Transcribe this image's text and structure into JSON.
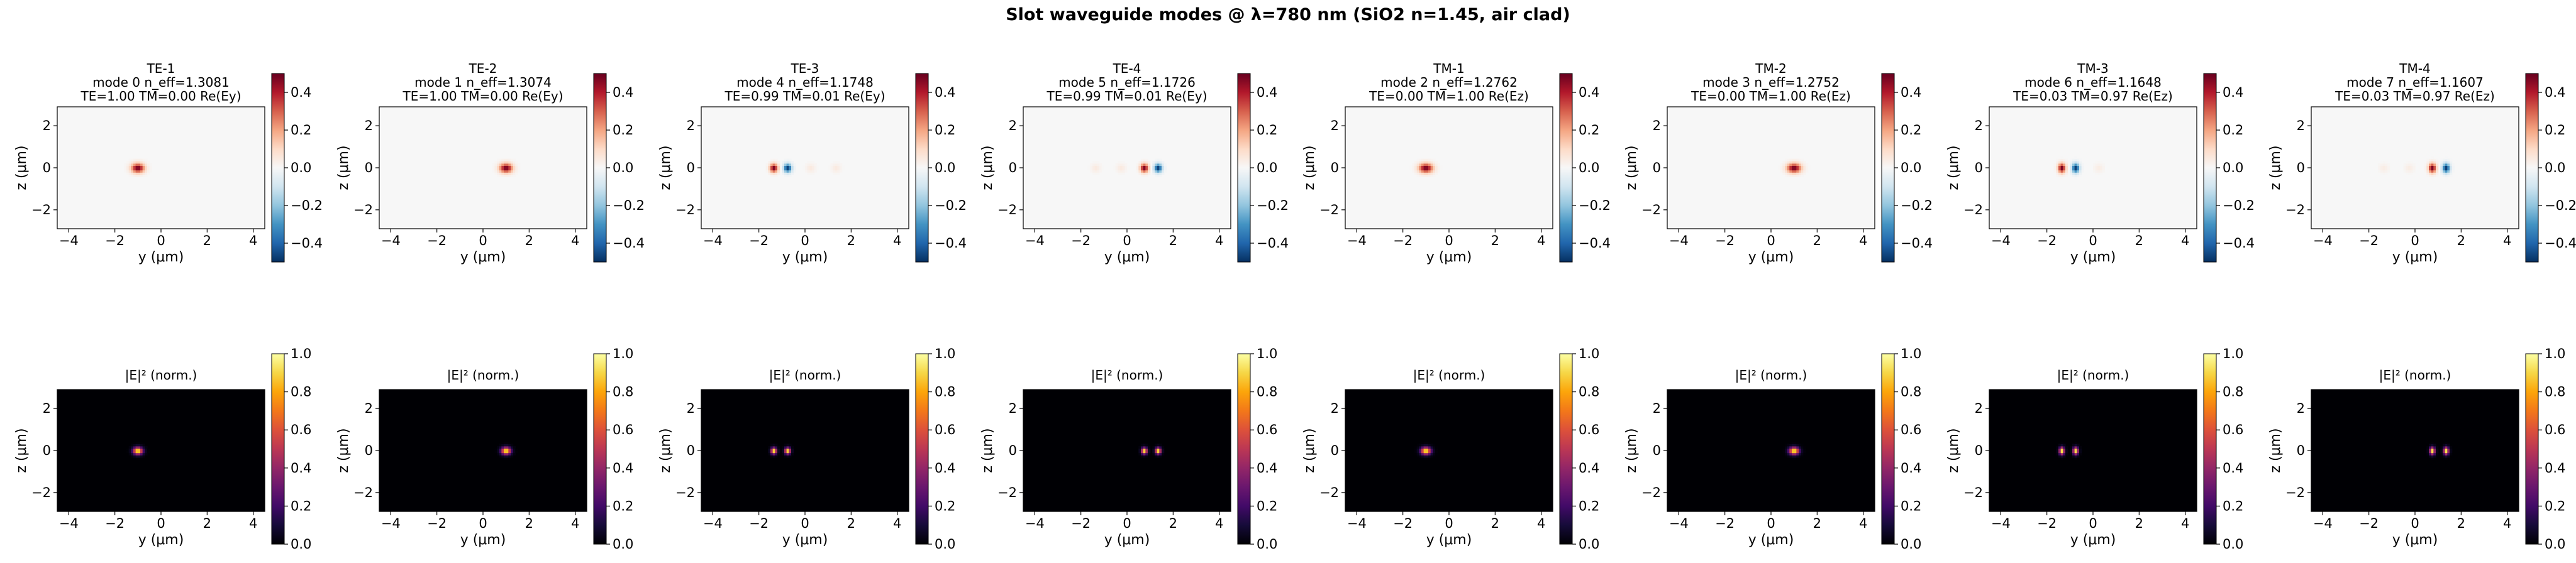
{
  "figure": {
    "suptitle": "Slot waveguide modes @ λ=780 nm (SiO2 n=1.45, air clad)"
  },
  "chart_data": {
    "type": "heatmap",
    "title": "Slot waveguide modes @ λ=780 nm (SiO2 n=1.45, air clad)",
    "xlabel": "y (μm)",
    "ylabel": "z (μm)",
    "xlim": [
      -4.5,
      4.5
    ],
    "ylim": [
      -2.9,
      2.9
    ],
    "x_ticks": [
      -4,
      -2,
      0,
      2,
      4
    ],
    "y_ticks": [
      -2,
      0,
      2
    ],
    "top_row": {
      "field_title": "",
      "colormap": "RdBu_r",
      "clim": [
        -0.5,
        0.5
      ],
      "cbar_ticks": [
        0.4,
        0.2,
        0.0,
        -0.2,
        -0.4
      ],
      "cbar_tick_labels": [
        "0.4",
        "0.2",
        "0.0",
        "−0.2",
        "−0.4"
      ]
    },
    "bottom_row": {
      "field_title": "|E|² (norm.)",
      "colormap": "inferno",
      "clim": [
        0,
        1
      ],
      "cbar_ticks": [
        1.0,
        0.8,
        0.6,
        0.4,
        0.2,
        0.0
      ],
      "cbar_tick_labels": [
        "1.0",
        "0.8",
        "0.6",
        "0.4",
        "0.2",
        "0.0"
      ]
    },
    "modes": [
      {
        "label": "TE-1",
        "line2": "mode 0  n_eff=1.3081",
        "line3": "TE=1.00  TM=0.00  Re(Ey)",
        "lobes": [
          {
            "y": -1.0,
            "z": 0.0,
            "amp": 0.5,
            "wy": 0.28,
            "wz": 0.22
          }
        ],
        "intensity": [
          {
            "y": -1.0,
            "z": 0.0,
            "amp": 1.0,
            "wy": 0.2,
            "wz": 0.17
          }
        ]
      },
      {
        "label": "TE-2",
        "line2": "mode 1  n_eff=1.3074",
        "line3": "TE=1.00  TM=0.00  Re(Ey)",
        "lobes": [
          {
            "y": 1.0,
            "z": 0.0,
            "amp": 0.5,
            "wy": 0.28,
            "wz": 0.22
          }
        ],
        "intensity": [
          {
            "y": 1.0,
            "z": 0.0,
            "amp": 1.0,
            "wy": 0.2,
            "wz": 0.17
          }
        ]
      },
      {
        "label": "TE-3",
        "line2": "mode 4  n_eff=1.1748",
        "line3": "TE=0.99  TM=0.01  Re(Ey)",
        "lobes": [
          {
            "y": -1.35,
            "z": 0.0,
            "amp": 0.5,
            "wy": 0.17,
            "wz": 0.2
          },
          {
            "y": -0.75,
            "z": 0.0,
            "amp": -0.5,
            "wy": 0.17,
            "wz": 0.2
          },
          {
            "y": 0.25,
            "z": 0.0,
            "amp": 0.05,
            "wy": 0.2,
            "wz": 0.2
          },
          {
            "y": 1.35,
            "z": 0.0,
            "amp": 0.05,
            "wy": 0.2,
            "wz": 0.2
          }
        ],
        "intensity": [
          {
            "y": -1.35,
            "z": 0.0,
            "amp": 1.0,
            "wy": 0.12,
            "wz": 0.15
          },
          {
            "y": -0.75,
            "z": 0.0,
            "amp": 1.0,
            "wy": 0.12,
            "wz": 0.15
          }
        ]
      },
      {
        "label": "TE-4",
        "line2": "mode 5  n_eff=1.1726",
        "line3": "TE=0.99  TM=0.01  Re(Ey)",
        "lobes": [
          {
            "y": 0.75,
            "z": 0.0,
            "amp": 0.5,
            "wy": 0.17,
            "wz": 0.2
          },
          {
            "y": 1.35,
            "z": 0.0,
            "amp": -0.5,
            "wy": 0.17,
            "wz": 0.2
          },
          {
            "y": -1.35,
            "z": 0.0,
            "amp": 0.05,
            "wy": 0.2,
            "wz": 0.2
          },
          {
            "y": -0.25,
            "z": 0.0,
            "amp": 0.05,
            "wy": 0.2,
            "wz": 0.2
          }
        ],
        "intensity": [
          {
            "y": 0.75,
            "z": 0.0,
            "amp": 1.0,
            "wy": 0.12,
            "wz": 0.15
          },
          {
            "y": 1.35,
            "z": 0.0,
            "amp": 1.0,
            "wy": 0.12,
            "wz": 0.15
          }
        ]
      },
      {
        "label": "TM-1",
        "line2": "mode 2  n_eff=1.2762",
        "line3": "TE=0.00  TM=1.00  Re(Ez)",
        "lobes": [
          {
            "y": -1.0,
            "z": 0.0,
            "amp": 0.5,
            "wy": 0.3,
            "wz": 0.22
          }
        ],
        "intensity": [
          {
            "y": -1.0,
            "z": 0.0,
            "amp": 1.0,
            "wy": 0.21,
            "wz": 0.17
          }
        ]
      },
      {
        "label": "TM-2",
        "line2": "mode 3  n_eff=1.2752",
        "line3": "TE=0.00  TM=1.00  Re(Ez)",
        "lobes": [
          {
            "y": 1.0,
            "z": 0.0,
            "amp": 0.5,
            "wy": 0.3,
            "wz": 0.22
          }
        ],
        "intensity": [
          {
            "y": 1.0,
            "z": 0.0,
            "amp": 1.0,
            "wy": 0.21,
            "wz": 0.17
          }
        ]
      },
      {
        "label": "TM-3",
        "line2": "mode 6  n_eff=1.1648",
        "line3": "TE=0.03  TM=0.97  Re(Ez)",
        "lobes": [
          {
            "y": -1.35,
            "z": 0.0,
            "amp": 0.5,
            "wy": 0.16,
            "wz": 0.22
          },
          {
            "y": -0.75,
            "z": 0.0,
            "amp": -0.5,
            "wy": 0.16,
            "wz": 0.22
          },
          {
            "y": 0.25,
            "z": 0.0,
            "amp": 0.04,
            "wy": 0.2,
            "wz": 0.2
          }
        ],
        "intensity": [
          {
            "y": -1.35,
            "z": 0.0,
            "amp": 1.0,
            "wy": 0.11,
            "wz": 0.17
          },
          {
            "y": -0.75,
            "z": 0.0,
            "amp": 1.0,
            "wy": 0.11,
            "wz": 0.17
          }
        ]
      },
      {
        "label": "TM-4",
        "line2": "mode 7  n_eff=1.1607",
        "line3": "TE=0.03  TM=0.97  Re(Ez)",
        "lobes": [
          {
            "y": 0.75,
            "z": 0.0,
            "amp": 0.5,
            "wy": 0.16,
            "wz": 0.22
          },
          {
            "y": 1.35,
            "z": 0.0,
            "amp": -0.5,
            "wy": 0.16,
            "wz": 0.22
          },
          {
            "y": -0.25,
            "z": 0.0,
            "amp": 0.04,
            "wy": 0.2,
            "wz": 0.2
          },
          {
            "y": -1.35,
            "z": 0.0,
            "amp": 0.04,
            "wy": 0.2,
            "wz": 0.2
          }
        ],
        "intensity": [
          {
            "y": 0.75,
            "z": 0.0,
            "amp": 1.0,
            "wy": 0.11,
            "wz": 0.17
          },
          {
            "y": 1.35,
            "z": 0.0,
            "amp": 1.0,
            "wy": 0.11,
            "wz": 0.17
          }
        ]
      }
    ]
  }
}
